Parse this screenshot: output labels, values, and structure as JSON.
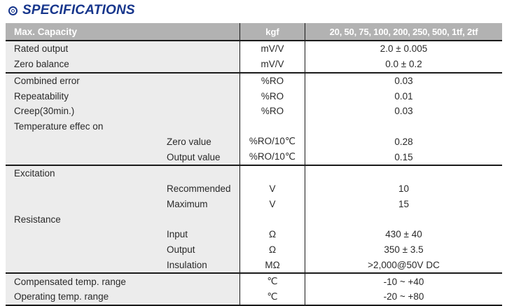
{
  "title": "SPECIFICATIONS",
  "colors": {
    "accent_blue": "#17368c",
    "header_bg": "#b2b2b2",
    "first_col_bg": "#ececec",
    "border": "#1b1b1b"
  },
  "table": {
    "header": {
      "capacity_label": "Max. Capacity",
      "unit_label": "kgf",
      "capacities": "20, 50, 75, 100, 200, 250, 500, 1tf, 2tf"
    },
    "rows": [
      {
        "label": "Rated output",
        "unit": "mV/V",
        "value": "2.0 ± 0.005"
      },
      {
        "label": "Zero balance",
        "unit": "mV/V",
        "value": "0.0 ± 0.2"
      },
      {
        "label": "Combined error",
        "unit": "%RO",
        "value": "0.03"
      },
      {
        "label": "Repeatability",
        "unit": "%RO",
        "value": "0.01"
      },
      {
        "label": "Creep(30min.)",
        "unit": "%RO",
        "value": "0.03"
      },
      {
        "label": "Temperature effec on",
        "unit": "",
        "value": ""
      },
      {
        "label": "Zero value",
        "unit": "%RO/10℃",
        "value": "0.28"
      },
      {
        "label": "Output value",
        "unit": "%RO/10℃",
        "value": "0.15"
      },
      {
        "label": "Excitation",
        "unit": "",
        "value": ""
      },
      {
        "label": "Recommended",
        "unit": "V",
        "value": "10"
      },
      {
        "label": "Maximum",
        "unit": "V",
        "value": "15"
      },
      {
        "label": "Resistance",
        "unit": "",
        "value": ""
      },
      {
        "label": "Input",
        "unit": "Ω",
        "value": "430 ± 40"
      },
      {
        "label": "Output",
        "unit": "Ω",
        "value": "350 ± 3.5"
      },
      {
        "label": "Insulation",
        "unit": "MΩ",
        "value": ">2,000@50V DC"
      },
      {
        "label": "Compensated temp. range",
        "unit": "℃",
        "value": "-10 ~ +40"
      },
      {
        "label": "Operating temp. range",
        "unit": "℃",
        "value": "-20 ~ +80"
      }
    ]
  }
}
